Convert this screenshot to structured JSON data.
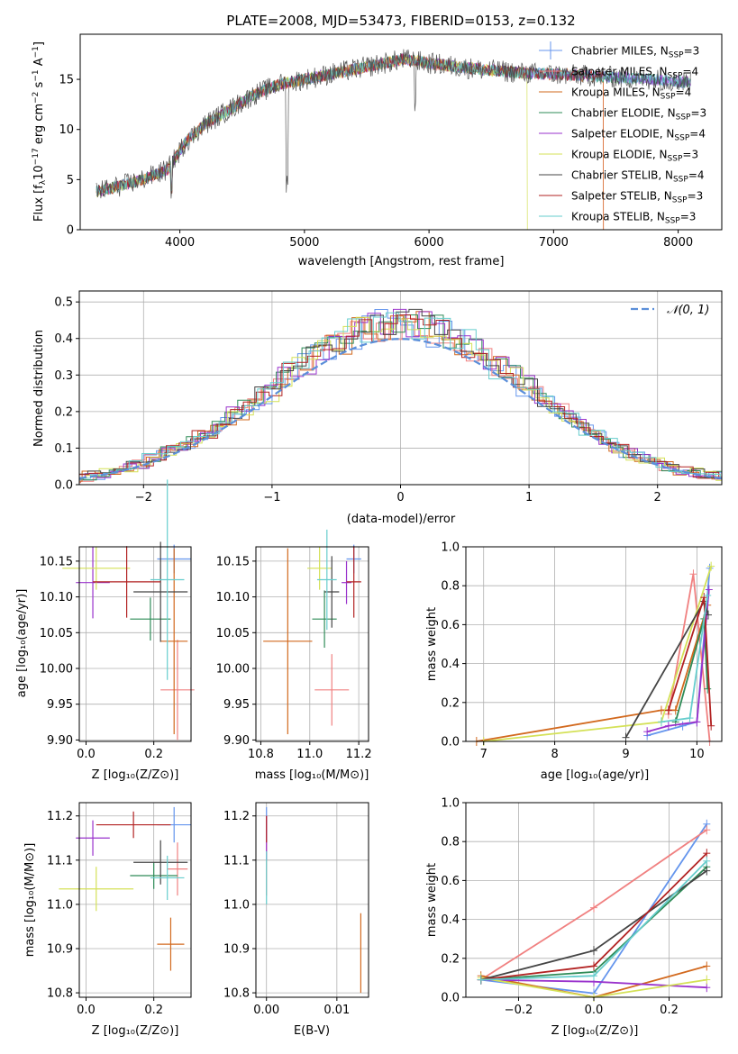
{
  "colors": {
    "chabrier_miles": "#6495ed",
    "salpeter_miles": "#f08080",
    "kroupa_miles": "#d2691e",
    "chabrier_elodie": "#2e8b57",
    "salpeter_elodie": "#9932cc",
    "kroupa_elodie": "#d4e157",
    "chabrier_stelib": "#444444",
    "salpeter_stelib": "#b22222",
    "kroupa_stelib": "#66cdcd",
    "normal": "#5b8fd9"
  },
  "chart_data": [
    {
      "id": "spectrum",
      "type": "line",
      "title": "PLATE=2008, MJD=53473, FIBERID=0153, z=0.132",
      "xlabel": "wavelength [Angstrom, rest frame]",
      "ylabel": "Flux [fλ10⁻¹⁷ erg cm⁻² s⁻¹ A⁻¹]",
      "xlim": [
        3200,
        8350
      ],
      "ylim": [
        0,
        19.5
      ],
      "xticks": [
        4000,
        5000,
        6000,
        7000,
        8000
      ],
      "yticks": [
        0,
        5,
        10,
        15
      ],
      "grid": false,
      "legend_position": "top-right",
      "legend": [
        {
          "label": "Chabrier MILES, N_SSP=3",
          "color": "chabrier_miles"
        },
        {
          "label": "Salpeter MILES, N_SSP=4",
          "color": "salpeter_miles"
        },
        {
          "label": "Kroupa MILES, N_SSP=4",
          "color": "kroupa_miles"
        },
        {
          "label": "Chabrier ELODIE, N_SSP=3",
          "color": "chabrier_elodie"
        },
        {
          "label": "Salpeter ELODIE, N_SSP=4",
          "color": "salpeter_elodie"
        },
        {
          "label": "Kroupa ELODIE, N_SSP=3",
          "color": "kroupa_elodie"
        },
        {
          "label": "Chabrier STELIB, N_SSP=4",
          "color": "chabrier_stelib"
        },
        {
          "label": "Salpeter STELIB, N_SSP=3",
          "color": "salpeter_stelib"
        },
        {
          "label": "Kroupa STELIB, N_SSP=3",
          "color": "kroupa_stelib"
        }
      ],
      "x": [
        3330,
        3500,
        3700,
        3900,
        4050,
        4200,
        4400,
        4600,
        4800,
        5000,
        5200,
        5400,
        5600,
        5800,
        6000,
        6200,
        6400,
        6600,
        6800,
        7000,
        7200,
        7400,
        7600,
        7800,
        8000,
        8100
      ],
      "data_flux": [
        3.8,
        4.3,
        5.0,
        6.0,
        8.8,
        10.5,
        12.0,
        13.5,
        14.5,
        15.0,
        15.5,
        16.0,
        16.5,
        17.0,
        16.6,
        16.3,
        16.0,
        15.8,
        15.6,
        15.5,
        15.4,
        15.3,
        15.1,
        15.0,
        14.8,
        14.7
      ]
    },
    {
      "id": "residual-hist",
      "type": "line",
      "xlabel": "(data-model)/error",
      "ylabel": "Normed distribution",
      "xlim": [
        -2.5,
        2.5
      ],
      "ylim": [
        0,
        0.53
      ],
      "xticks": [
        -2,
        -1,
        0,
        1,
        2
      ],
      "yticks": [
        0.0,
        0.1,
        0.2,
        0.3,
        0.4,
        0.5
      ],
      "grid": true,
      "legend_position": "top-right",
      "legend_label": "𝒩(0, 1)"
    },
    {
      "id": "age-vs-z",
      "type": "scatter",
      "xlabel": "Z [log₁₀(Z/Z⊙)]",
      "ylabel": "age  [log₁₀(age/yr)]",
      "xlim": [
        -0.02,
        0.31
      ],
      "ylim": [
        9.898,
        10.17
      ],
      "xticks": [
        0.0,
        0.2
      ],
      "yticks": [
        9.9,
        9.95,
        10.0,
        10.05,
        10.1,
        10.15
      ],
      "grid": true,
      "points": [
        {
          "c": "chabrier_miles",
          "x": 0.26,
          "y": 10.153,
          "xe": 0.05,
          "ye": 0.02
        },
        {
          "c": "salpeter_miles",
          "x": 0.27,
          "y": 9.97,
          "xe": 0.05,
          "ye": 0.07
        },
        {
          "c": "kroupa_miles",
          "x": 0.26,
          "y": 10.038,
          "xe": 0.04,
          "ye": 0.13
        },
        {
          "c": "chabrier_elodie",
          "x": 0.19,
          "y": 10.069,
          "xe": 0.06,
          "ye": 0.03
        },
        {
          "c": "salpeter_elodie",
          "x": 0.02,
          "y": 10.12,
          "xe": 0.05,
          "ye": 0.05
        },
        {
          "c": "kroupa_elodie",
          "x": 0.03,
          "y": 10.14,
          "xe": 0.1,
          "ye": 0.03
        },
        {
          "c": "chabrier_stelib",
          "x": 0.22,
          "y": 10.107,
          "xe": 0.08,
          "ye": 0.07
        },
        {
          "c": "salpeter_stelib",
          "x": 0.12,
          "y": 10.121,
          "xe": 0.1,
          "ye": 0.05
        },
        {
          "c": "kroupa_stelib",
          "x": 0.24,
          "y": 10.124,
          "xe": 0.05,
          "ye": 0.14
        }
      ]
    },
    {
      "id": "age-vs-mass",
      "type": "scatter",
      "xlabel": "mass [log₁₀(M/M⊙)]",
      "xlim": [
        10.78,
        11.24
      ],
      "ylim": [
        9.898,
        10.17
      ],
      "xticks": [
        10.8,
        11.0,
        11.2
      ],
      "yticks": [
        9.9,
        9.95,
        10.0,
        10.05,
        10.1,
        10.15
      ],
      "grid": true,
      "points": [
        {
          "c": "chabrier_miles",
          "x": 11.18,
          "y": 10.153,
          "xe": 0.03,
          "ye": 0.02
        },
        {
          "c": "salpeter_miles",
          "x": 11.09,
          "y": 9.97,
          "xe": 0.07,
          "ye": 0.05
        },
        {
          "c": "kroupa_miles",
          "x": 10.91,
          "y": 10.038,
          "xe": 0.1,
          "ye": 0.13
        },
        {
          "c": "chabrier_elodie",
          "x": 11.06,
          "y": 10.069,
          "xe": 0.05,
          "ye": 0.04
        },
        {
          "c": "salpeter_elodie",
          "x": 11.15,
          "y": 10.12,
          "xe": 0.02,
          "ye": 0.03
        },
        {
          "c": "kroupa_elodie",
          "x": 11.04,
          "y": 10.14,
          "xe": 0.05,
          "ye": 0.03
        },
        {
          "c": "chabrier_stelib",
          "x": 11.09,
          "y": 10.107,
          "xe": 0.03,
          "ye": 0.05
        },
        {
          "c": "salpeter_stelib",
          "x": 11.18,
          "y": 10.121,
          "xe": 0.03,
          "ye": 0.05
        },
        {
          "c": "kroupa_stelib",
          "x": 11.07,
          "y": 10.124,
          "xe": 0.04,
          "ye": 0.07
        }
      ]
    },
    {
      "id": "mass-weight-vs-age",
      "type": "line",
      "xlabel": "age  [log₁₀(age/yr)]",
      "ylabel": "mass weight",
      "xlim": [
        6.75,
        10.35
      ],
      "ylim": [
        0.0,
        1.0
      ],
      "xticks": [
        7,
        8,
        9,
        10
      ],
      "yticks": [
        0.0,
        0.2,
        0.4,
        0.6,
        0.8,
        1.0
      ],
      "grid": true,
      "series": [
        {
          "c": "chabrier_miles",
          "x": [
            9.3,
            9.8,
            10.0,
            10.18
          ],
          "y": [
            0.03,
            0.08,
            0.1,
            0.89
          ]
        },
        {
          "c": "salpeter_miles",
          "x": [
            9.6,
            9.95,
            10.18
          ],
          "y": [
            0.14,
            0.86,
            0.0
          ]
        },
        {
          "c": "kroupa_miles",
          "x": [
            6.9,
            9.5,
            9.7,
            10.15
          ],
          "y": [
            0.0,
            0.16,
            0.16,
            0.7
          ]
        },
        {
          "c": "chabrier_elodie",
          "x": [
            9.7,
            10.1,
            10.15
          ],
          "y": [
            0.1,
            0.63,
            0.27
          ]
        },
        {
          "c": "salpeter_elodie",
          "x": [
            9.3,
            9.6,
            10.0,
            10.17
          ],
          "y": [
            0.05,
            0.08,
            0.1,
            0.78
          ]
        },
        {
          "c": "kroupa_elodie",
          "x": [
            7.0,
            9.5,
            10.2
          ],
          "y": [
            0.0,
            0.1,
            0.9
          ]
        },
        {
          "c": "chabrier_stelib",
          "x": [
            9.0,
            10.1,
            10.16
          ],
          "y": [
            0.02,
            0.72,
            0.65
          ]
        },
        {
          "c": "salpeter_stelib",
          "x": [
            9.6,
            10.1,
            10.2
          ],
          "y": [
            0.16,
            0.74,
            0.08
          ]
        },
        {
          "c": "kroupa_stelib",
          "x": [
            9.5,
            9.9,
            10.15
          ],
          "y": [
            0.1,
            0.12,
            0.75
          ]
        }
      ]
    },
    {
      "id": "mass-vs-z",
      "type": "scatter",
      "xlabel": "Z [log₁₀(Z/Z⊙)]",
      "ylabel": "mass [log₁₀(M/M⊙)]",
      "xlim": [
        -0.02,
        0.31
      ],
      "ylim": [
        10.79,
        11.23
      ],
      "xticks": [
        0.0,
        0.2
      ],
      "yticks": [
        10.8,
        10.9,
        11.0,
        11.1,
        11.2
      ],
      "grid": true,
      "points": [
        {
          "c": "chabrier_miles",
          "x": 0.26,
          "y": 11.18,
          "xe": 0.05,
          "ye": 0.04
        },
        {
          "c": "salpeter_miles",
          "x": 0.27,
          "y": 11.08,
          "xe": 0.03,
          "ye": 0.06
        },
        {
          "c": "kroupa_miles",
          "x": 0.25,
          "y": 10.91,
          "xe": 0.04,
          "ye": 0.06
        },
        {
          "c": "chabrier_elodie",
          "x": 0.2,
          "y": 11.065,
          "xe": 0.07,
          "ye": 0.03
        },
        {
          "c": "salpeter_elodie",
          "x": 0.02,
          "y": 11.15,
          "xe": 0.05,
          "ye": 0.04
        },
        {
          "c": "kroupa_elodie",
          "x": 0.03,
          "y": 11.035,
          "xe": 0.11,
          "ye": 0.05
        },
        {
          "c": "chabrier_stelib",
          "x": 0.22,
          "y": 11.095,
          "xe": 0.08,
          "ye": 0.05
        },
        {
          "c": "salpeter_stelib",
          "x": 0.14,
          "y": 11.18,
          "xe": 0.11,
          "ye": 0.03
        },
        {
          "c": "kroupa_stelib",
          "x": 0.24,
          "y": 11.06,
          "xe": 0.05,
          "ye": 0.05
        }
      ]
    },
    {
      "id": "mass-vs-ebv",
      "type": "scatter",
      "xlabel": "E(B-V)",
      "xlim": [
        -0.0015,
        0.0145
      ],
      "ylim": [
        10.79,
        11.23
      ],
      "xticks": [
        0.0,
        0.01
      ],
      "yticks": [
        10.8,
        10.9,
        11.0,
        11.1,
        11.2
      ],
      "grid": true,
      "points": [
        {
          "c": "chabrier_miles",
          "x": 0.0,
          "y": 11.18,
          "xe": 0.0,
          "ye": 0.04
        },
        {
          "c": "salpeter_miles",
          "x": 0.0,
          "y": 11.08,
          "xe": 0.0,
          "ye": 0.06
        },
        {
          "c": "kroupa_miles",
          "x": 0.0134,
          "y": 10.89,
          "xe": 0.0,
          "ye": 0.09
        },
        {
          "c": "salpeter_elodie",
          "x": 0.0,
          "y": 11.15,
          "xe": 0.0,
          "ye": 0.05
        },
        {
          "c": "salpeter_stelib",
          "x": 0.0,
          "y": 11.17,
          "xe": 0.0,
          "ye": 0.03
        },
        {
          "c": "kroupa_stelib",
          "x": 0.0,
          "y": 11.06,
          "xe": 0.0,
          "ye": 0.06
        }
      ]
    },
    {
      "id": "mass-weight-vs-z",
      "type": "line",
      "xlabel": "Z [log₁₀(Z/Z⊙)]",
      "ylabel": "mass weight",
      "xlim": [
        -0.34,
        0.34
      ],
      "ylim": [
        0.0,
        1.0
      ],
      "xticks": [
        -0.2,
        0.0,
        0.2
      ],
      "yticks": [
        0.0,
        0.2,
        0.4,
        0.6,
        0.8,
        1.0
      ],
      "grid": true,
      "series": [
        {
          "c": "chabrier_miles",
          "x": [
            -0.3,
            0.0,
            0.3
          ],
          "y": [
            0.09,
            0.02,
            0.89
          ]
        },
        {
          "c": "salpeter_miles",
          "x": [
            -0.3,
            0.0,
            0.3
          ],
          "y": [
            0.09,
            0.46,
            0.86
          ]
        },
        {
          "c": "kroupa_miles",
          "x": [
            -0.3,
            0.0,
            0.3
          ],
          "y": [
            0.11,
            0.0,
            0.16
          ]
        },
        {
          "c": "chabrier_elodie",
          "x": [
            -0.3,
            0.0,
            0.3
          ],
          "y": [
            0.09,
            0.13,
            0.67
          ]
        },
        {
          "c": "salpeter_elodie",
          "x": [
            -0.3,
            0.0,
            0.3
          ],
          "y": [
            0.09,
            0.08,
            0.05
          ]
        },
        {
          "c": "kroupa_elodie",
          "x": [
            -0.3,
            0.0,
            0.3
          ],
          "y": [
            0.1,
            0.0,
            0.09
          ]
        },
        {
          "c": "chabrier_stelib",
          "x": [
            -0.3,
            0.0,
            0.3
          ],
          "y": [
            0.09,
            0.24,
            0.65
          ]
        },
        {
          "c": "salpeter_stelib",
          "x": [
            -0.3,
            0.0,
            0.3
          ],
          "y": [
            0.09,
            0.16,
            0.74
          ]
        },
        {
          "c": "kroupa_stelib",
          "x": [
            -0.3,
            0.0,
            0.3
          ],
          "y": [
            0.09,
            0.11,
            0.7
          ]
        }
      ]
    }
  ]
}
